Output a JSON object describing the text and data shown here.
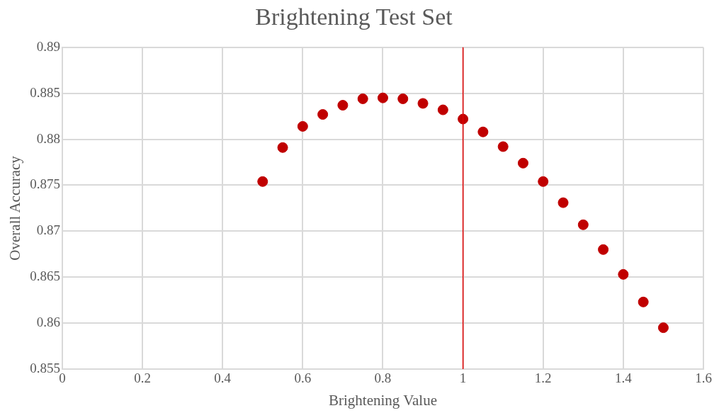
{
  "chart_data": {
    "type": "scatter",
    "title": "Brightening Test Set",
    "xlabel": "Brightening Value",
    "ylabel": "Overall Accuracy",
    "x": [
      0.5,
      0.55,
      0.6,
      0.65,
      0.7,
      0.75,
      0.8,
      0.85,
      0.9,
      0.95,
      1.0,
      1.05,
      1.1,
      1.15,
      1.2,
      1.25,
      1.3,
      1.35,
      1.4,
      1.45,
      1.5
    ],
    "series": [
      {
        "color": "#c00000",
        "values": [
          0.8754,
          0.8791,
          0.8814,
          0.8827,
          0.8837,
          0.8844,
          0.8845,
          0.8844,
          0.8839,
          0.8832,
          0.8822,
          0.8808,
          0.8792,
          0.8774,
          0.8754,
          0.8731,
          0.8707,
          0.868,
          0.8653,
          0.8623,
          0.8595
        ]
      }
    ],
    "xlim": [
      0,
      1.6
    ],
    "xticks": [
      0,
      0.2,
      0.4,
      0.6,
      0.8,
      1,
      1.2,
      1.4,
      1.6
    ],
    "ylim": [
      0.855,
      0.89
    ],
    "yticks": [
      0.855,
      0.86,
      0.865,
      0.87,
      0.875,
      0.88,
      0.885,
      0.89
    ],
    "ref_lines": [
      {
        "axis": "x",
        "value": 1,
        "color": "#e00000"
      }
    ],
    "grid": true,
    "legend": false,
    "marker": "circle"
  }
}
